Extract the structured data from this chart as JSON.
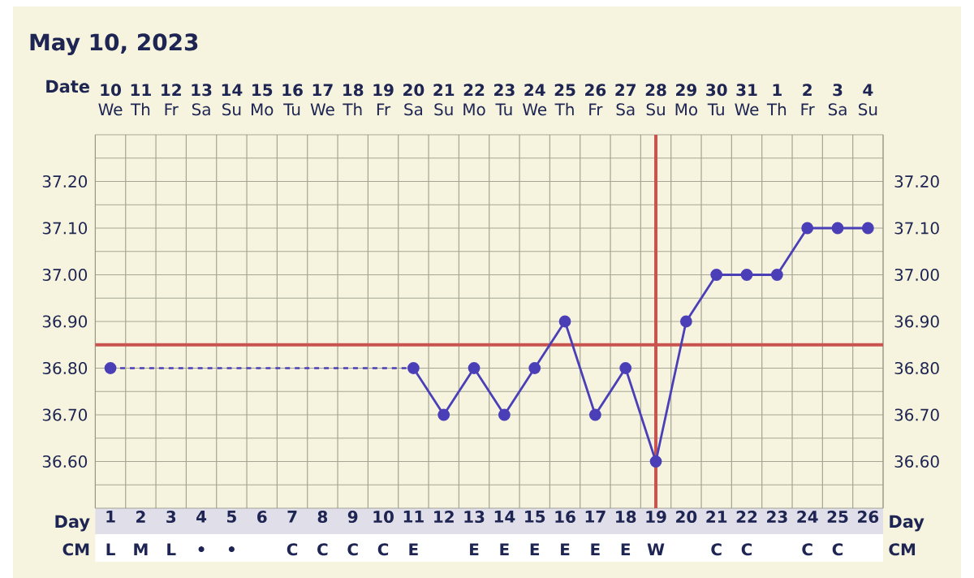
{
  "chart_data": {
    "type": "line",
    "title": "May 10, 2023",
    "xlabel": "Day",
    "categories": [
      "1",
      "2",
      "3",
      "4",
      "5",
      "6",
      "7",
      "8",
      "9",
      "10",
      "11",
      "12",
      "13",
      "14",
      "15",
      "16",
      "17",
      "18",
      "19",
      "20",
      "21",
      "22",
      "23",
      "24",
      "25",
      "26"
    ],
    "series": [
      {
        "color": "#4b3fb8",
        "values": [
          36.8,
          null,
          null,
          null,
          null,
          null,
          null,
          null,
          null,
          null,
          36.8,
          36.7,
          36.8,
          36.7,
          36.8,
          36.9,
          36.7,
          36.8,
          36.6,
          36.9,
          37.0,
          37.0,
          37.0,
          37.1,
          37.1,
          37.1
        ]
      }
    ],
    "marker": "circle",
    "line_style": "solid",
    "grid": true,
    "ylim": [
      36.5,
      37.3
    ],
    "yticks": [
      {
        "value": 36.55,
        "label": null
      },
      {
        "value": 36.6,
        "label": "36.60"
      },
      {
        "value": 36.65,
        "label": null
      },
      {
        "value": 36.7,
        "label": "36.70"
      },
      {
        "value": 36.75,
        "label": null
      },
      {
        "value": 36.8,
        "label": "36.80"
      },
      {
        "value": 36.9,
        "label": "36.90"
      },
      {
        "value": 36.95,
        "label": null
      },
      {
        "value": 37.0,
        "label": "37.00"
      },
      {
        "value": 37.05,
        "label": null
      },
      {
        "value": 37.1,
        "label": "37.10"
      },
      {
        "value": 37.15,
        "label": null
      },
      {
        "value": 37.2,
        "label": "37.20"
      },
      {
        "value": 37.25,
        "label": null
      }
    ],
    "y2lim": [
      36.5,
      37.3
    ],
    "y2ticks": [
      {
        "value": 36.6,
        "label": "36.60"
      },
      {
        "value": 36.7,
        "label": "36.70"
      },
      {
        "value": 36.8,
        "label": "36.80"
      },
      {
        "value": 36.9,
        "label": "36.90"
      },
      {
        "value": 37.0,
        "label": "37.00"
      },
      {
        "value": 37.1,
        "label": "37.10"
      },
      {
        "value": 37.2,
        "label": "37.20"
      }
    ],
    "ref_lines": [
      {
        "axis": "y",
        "value": 36.85,
        "color": "#c9544f"
      },
      {
        "axis": "x",
        "value": "19",
        "color": "#c9544f"
      }
    ],
    "annotations": [
      "Date",
      "10",
      "11",
      "12",
      "13",
      "14",
      "15",
      "16",
      "17",
      "18",
      "19",
      "20",
      "21",
      "22",
      "23",
      "24",
      "25",
      "26",
      "27",
      "28",
      "29",
      "30",
      "31",
      "1",
      "2",
      "3",
      "4",
      "We",
      "Th",
      "Fr",
      "Sa",
      "Su",
      "Mo",
      "Tu",
      "We",
      "Th",
      "Fr",
      "Sa",
      "Su",
      "Mo",
      "Tu",
      "We",
      "Th",
      "Fr",
      "Sa",
      "Su",
      "Mo",
      "Tu",
      "We",
      "Th",
      "Fr",
      "Sa",
      "Su",
      "Day",
      "CM",
      "CM",
      "L",
      "M",
      "L",
      "•",
      "•",
      null,
      "C",
      "C",
      "C",
      "C",
      "E",
      null,
      "E",
      "E",
      "E",
      "E",
      "E",
      "E",
      "W",
      null,
      "C",
      "C",
      null,
      "C",
      "C",
      null
    ]
  }
}
